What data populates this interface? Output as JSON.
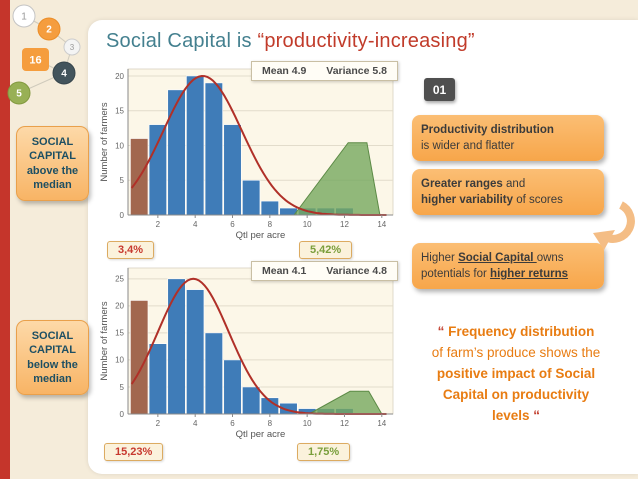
{
  "title": {
    "part1": "Social Capital is ",
    "part2": "“productivity-increasing”"
  },
  "badge": {
    "label": "01"
  },
  "nav": {
    "items": [
      {
        "label": "1"
      },
      {
        "label": "2"
      },
      {
        "label": "3"
      },
      {
        "label": "16"
      },
      {
        "label": "4"
      },
      {
        "label": "5"
      }
    ]
  },
  "left_labels": [
    {
      "lines": [
        "SOCIAL",
        "CAPITAL",
        "above the",
        "median"
      ]
    },
    {
      "lines": [
        "SOCIAL",
        "CAPITAL",
        "below the",
        "median"
      ]
    }
  ],
  "right_boxes": [
    {
      "lines": [
        [
          {
            "t": "Productivity distribution",
            "bold": true
          }
        ],
        [
          {
            "t": "is wider and flatter"
          }
        ]
      ]
    },
    {
      "lines": [
        [
          {
            "t": "Greater ranges",
            "bold": true
          },
          {
            "t": " and"
          }
        ],
        [
          {
            "t": "higher variability",
            "bold": true
          },
          {
            "t": " of  scores"
          }
        ]
      ]
    },
    {
      "lines": [
        [
          {
            "t": "Higher "
          },
          {
            "t": "Social Capital ",
            "bold": true,
            "underline": true
          },
          {
            "t": "owns"
          }
        ],
        [
          {
            "t": "potentials for "
          },
          {
            "t": "higher returns",
            "bold": true,
            "underline": true
          }
        ]
      ]
    }
  ],
  "quote": {
    "lines": [
      [
        {
          "t": "“ ",
          "red": true,
          "bold": true
        },
        {
          "t": "Frequency distribution",
          "bold": true
        }
      ],
      [
        {
          "t": "of farm’s produce shows the"
        }
      ],
      [
        {
          "t": "positive impact of Social",
          "bold": true
        }
      ],
      [
        {
          "t": "Capital on productivity",
          "bold": true
        }
      ],
      [
        {
          "t": "levels ",
          "bold": true
        },
        {
          "t": "“",
          "red": true,
          "bold": true
        }
      ]
    ]
  },
  "palette": {
    "blue": "#3f7cb8",
    "brown": "#a2674f",
    "green": "#76a85e",
    "green_edge": "#5c8a46",
    "curve_red": "#b03028",
    "accent_orange": "#f59d3e",
    "title_teal": "#44808f",
    "title_red": "#c13b2a",
    "quote_orange": "#e87c12",
    "pct_red": "#c7392f",
    "pct_green": "#7a9e3b"
  },
  "chart_data": [
    {
      "type": "bar",
      "title": "Social capital above the median",
      "xlabel": "Qtl per acre",
      "ylabel": "Number of farmers",
      "xlim": [
        0.4,
        14.6
      ],
      "ylim": [
        0,
        21
      ],
      "xticks": [
        2,
        4,
        6,
        8,
        10,
        12,
        14
      ],
      "yticks": [
        0,
        5,
        10,
        15,
        20
      ],
      "grid": true,
      "mean_label": "Mean 4.9",
      "variance_label": "Variance 5.8",
      "pct_left": "3,4%",
      "pct_right": "5,42%",
      "bars": [
        {
          "x": 1,
          "h": 11,
          "color": "brown"
        },
        {
          "x": 2,
          "h": 13,
          "color": "blue"
        },
        {
          "x": 3,
          "h": 18,
          "color": "blue"
        },
        {
          "x": 4,
          "h": 20,
          "color": "blue"
        },
        {
          "x": 5,
          "h": 19,
          "color": "blue"
        },
        {
          "x": 6,
          "h": 13,
          "color": "blue"
        },
        {
          "x": 7,
          "h": 5,
          "color": "blue"
        },
        {
          "x": 8,
          "h": 2,
          "color": "blue"
        },
        {
          "x": 9,
          "h": 1,
          "color": "blue"
        },
        {
          "x": 10,
          "h": 1,
          "color": "blue"
        },
        {
          "x": 11,
          "h": 1,
          "color": "blue"
        },
        {
          "x": 12,
          "h": 1,
          "color": "blue"
        }
      ],
      "curve": {
        "mu": 4.4,
        "sigma": 2.1,
        "peak": 20
      },
      "green_area": [
        [
          9.3,
          0
        ],
        [
          12.2,
          10.4
        ],
        [
          13.2,
          10.4
        ],
        [
          13.9,
          0
        ]
      ]
    },
    {
      "type": "bar",
      "title": "Social capital below the median",
      "xlabel": "Qtl per acre",
      "ylabel": "Number of farmers",
      "xlim": [
        0.4,
        14.6
      ],
      "ylim": [
        0,
        27
      ],
      "xticks": [
        2,
        4,
        6,
        8,
        10,
        12,
        14
      ],
      "yticks": [
        0,
        5,
        10,
        15,
        20,
        25
      ],
      "grid": true,
      "mean_label": "Mean 4.1",
      "variance_label": "Variance 4.8",
      "pct_left": "15,23%",
      "pct_right": "1,75%",
      "bars": [
        {
          "x": 1,
          "h": 21,
          "color": "brown"
        },
        {
          "x": 2,
          "h": 13,
          "color": "blue"
        },
        {
          "x": 3,
          "h": 25,
          "color": "blue"
        },
        {
          "x": 4,
          "h": 23,
          "color": "blue"
        },
        {
          "x": 5,
          "h": 15,
          "color": "blue"
        },
        {
          "x": 6,
          "h": 10,
          "color": "blue"
        },
        {
          "x": 7,
          "h": 5,
          "color": "blue"
        },
        {
          "x": 8,
          "h": 3,
          "color": "blue"
        },
        {
          "x": 9,
          "h": 2,
          "color": "blue"
        },
        {
          "x": 10,
          "h": 1,
          "color": "blue"
        },
        {
          "x": 11,
          "h": 1,
          "color": "blue"
        },
        {
          "x": 12,
          "h": 1,
          "color": "blue"
        }
      ],
      "curve": {
        "mu": 3.9,
        "sigma": 1.9,
        "peak": 25
      },
      "green_area": [
        [
          10.1,
          0
        ],
        [
          12.3,
          4.2
        ],
        [
          13.3,
          4.2
        ],
        [
          14,
          0
        ]
      ]
    }
  ]
}
